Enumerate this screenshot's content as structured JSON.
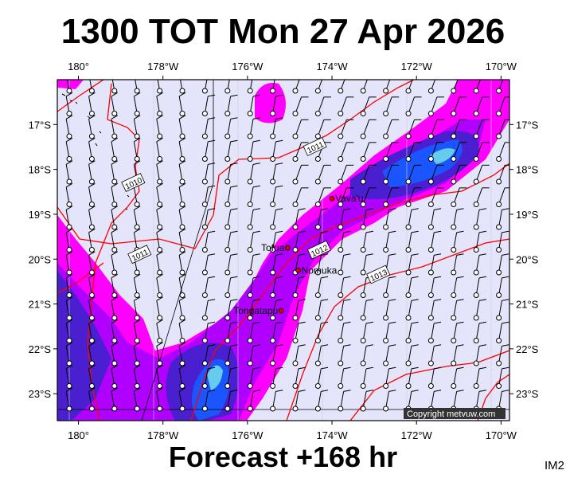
{
  "title": "1300 TOT Mon 27 Apr 2026",
  "footer": "Forecast +168 hr",
  "image_code": "IM2",
  "copyright": "Copyright metvuw.com",
  "map": {
    "lon_min": -180.5,
    "lon_max": -169.8,
    "lat_min": -23.6,
    "lat_max": -16.0,
    "lon_ticks": [
      {
        "value": -180,
        "label": "180°"
      },
      {
        "value": -178,
        "label": "178°W"
      },
      {
        "value": -176,
        "label": "176°W"
      },
      {
        "value": -174,
        "label": "174°W"
      },
      {
        "value": -172,
        "label": "172°W"
      },
      {
        "value": -170,
        "label": "170°W"
      }
    ],
    "lat_ticks": [
      {
        "value": -17,
        "label": "17°S"
      },
      {
        "value": -18,
        "label": "18°S"
      },
      {
        "value": -19,
        "label": "19°S"
      },
      {
        "value": -20,
        "label": "20°S"
      },
      {
        "value": -21,
        "label": "21°S"
      },
      {
        "value": -22,
        "label": "22°S"
      },
      {
        "value": -23,
        "label": "23°S"
      }
    ],
    "places": [
      {
        "name": "Vava'u",
        "lon": -174.0,
        "lat": -18.65
      },
      {
        "name": "Tofua",
        "lon": -175.05,
        "lat": -19.75
      },
      {
        "name": "Nomuka",
        "lon": -174.8,
        "lat": -20.25
      },
      {
        "name": "Tongatapu",
        "lon": -175.2,
        "lat": -21.15
      }
    ],
    "isobars": [
      {
        "label": "1010",
        "lon": -178.7,
        "lat": -18.3
      },
      {
        "label": "1011",
        "lon": -178.55,
        "lat": -19.9
      },
      {
        "label": "1011",
        "lon": -174.4,
        "lat": -17.5
      },
      {
        "label": "1012",
        "lon": -174.3,
        "lat": -19.8
      },
      {
        "label": "1013",
        "lon": -172.9,
        "lat": -20.35
      }
    ],
    "colors": {
      "background": "#e4e4fa",
      "precip_light": "#ff00ff",
      "precip_medium": "#b000ff",
      "precip_heavy": "#4a1fd0",
      "precip_heaviest": "#1a55ff",
      "precip_extreme": "#66ccee",
      "isobar": "#ff0000"
    }
  }
}
